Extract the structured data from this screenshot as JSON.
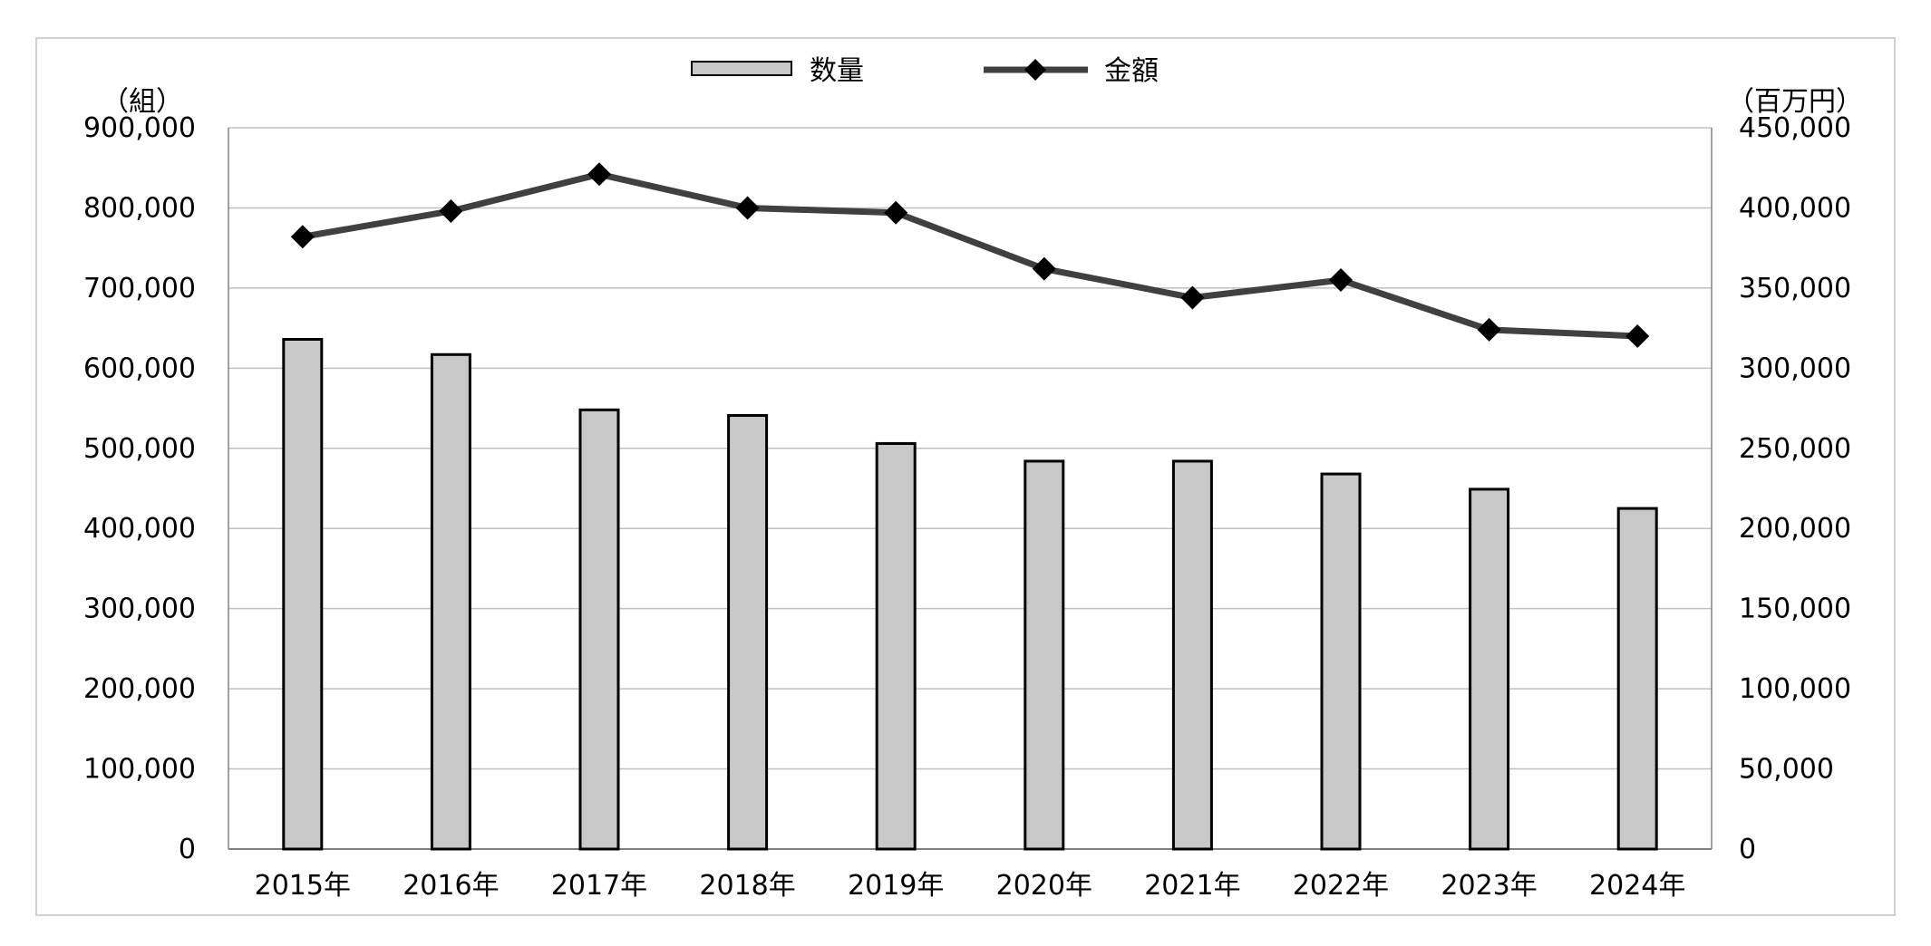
{
  "chart_data": {
    "type": "bar",
    "categories": [
      "2015年",
      "2016年",
      "2017年",
      "2018年",
      "2019年",
      "2020年",
      "2021年",
      "2022年",
      "2023年",
      "2024年"
    ],
    "series": [
      {
        "name": "数量",
        "type": "bar",
        "axis": "left",
        "values": [
          636000,
          617000,
          548000,
          541000,
          506000,
          484000,
          484000,
          468000,
          449000,
          425000
        ]
      },
      {
        "name": "金額",
        "type": "line",
        "axis": "right",
        "values": [
          382000,
          398000,
          421000,
          400000,
          397000,
          362000,
          344000,
          355000,
          324000,
          320000
        ]
      }
    ],
    "yaxis_left": {
      "unit_label": "（組）",
      "ylim": [
        0,
        900000
      ],
      "ticks": [
        0,
        100000,
        200000,
        300000,
        400000,
        500000,
        600000,
        700000,
        800000,
        900000
      ],
      "tick_labels": [
        "0",
        "100,000",
        "200,000",
        "300,000",
        "400,000",
        "500,000",
        "600,000",
        "700,000",
        "800,000",
        "900,000"
      ]
    },
    "yaxis_right": {
      "unit_label": "（百万円）",
      "ylim": [
        0,
        450000
      ],
      "ticks": [
        0,
        50000,
        100000,
        150000,
        200000,
        250000,
        300000,
        350000,
        400000,
        450000
      ],
      "tick_labels": [
        "0",
        "50,000",
        "100,000",
        "150,000",
        "200,000",
        "250,000",
        "300,000",
        "350,000",
        "400,000",
        "450,000"
      ]
    },
    "grid": true,
    "legend_position": "top-center",
    "colors": {
      "bar_fill": "#c8c8c8",
      "bar_stroke": "#000000",
      "line": "#404040",
      "marker": "#000000",
      "grid": "#c0c0c0",
      "frame": "#d0d0d0"
    }
  }
}
